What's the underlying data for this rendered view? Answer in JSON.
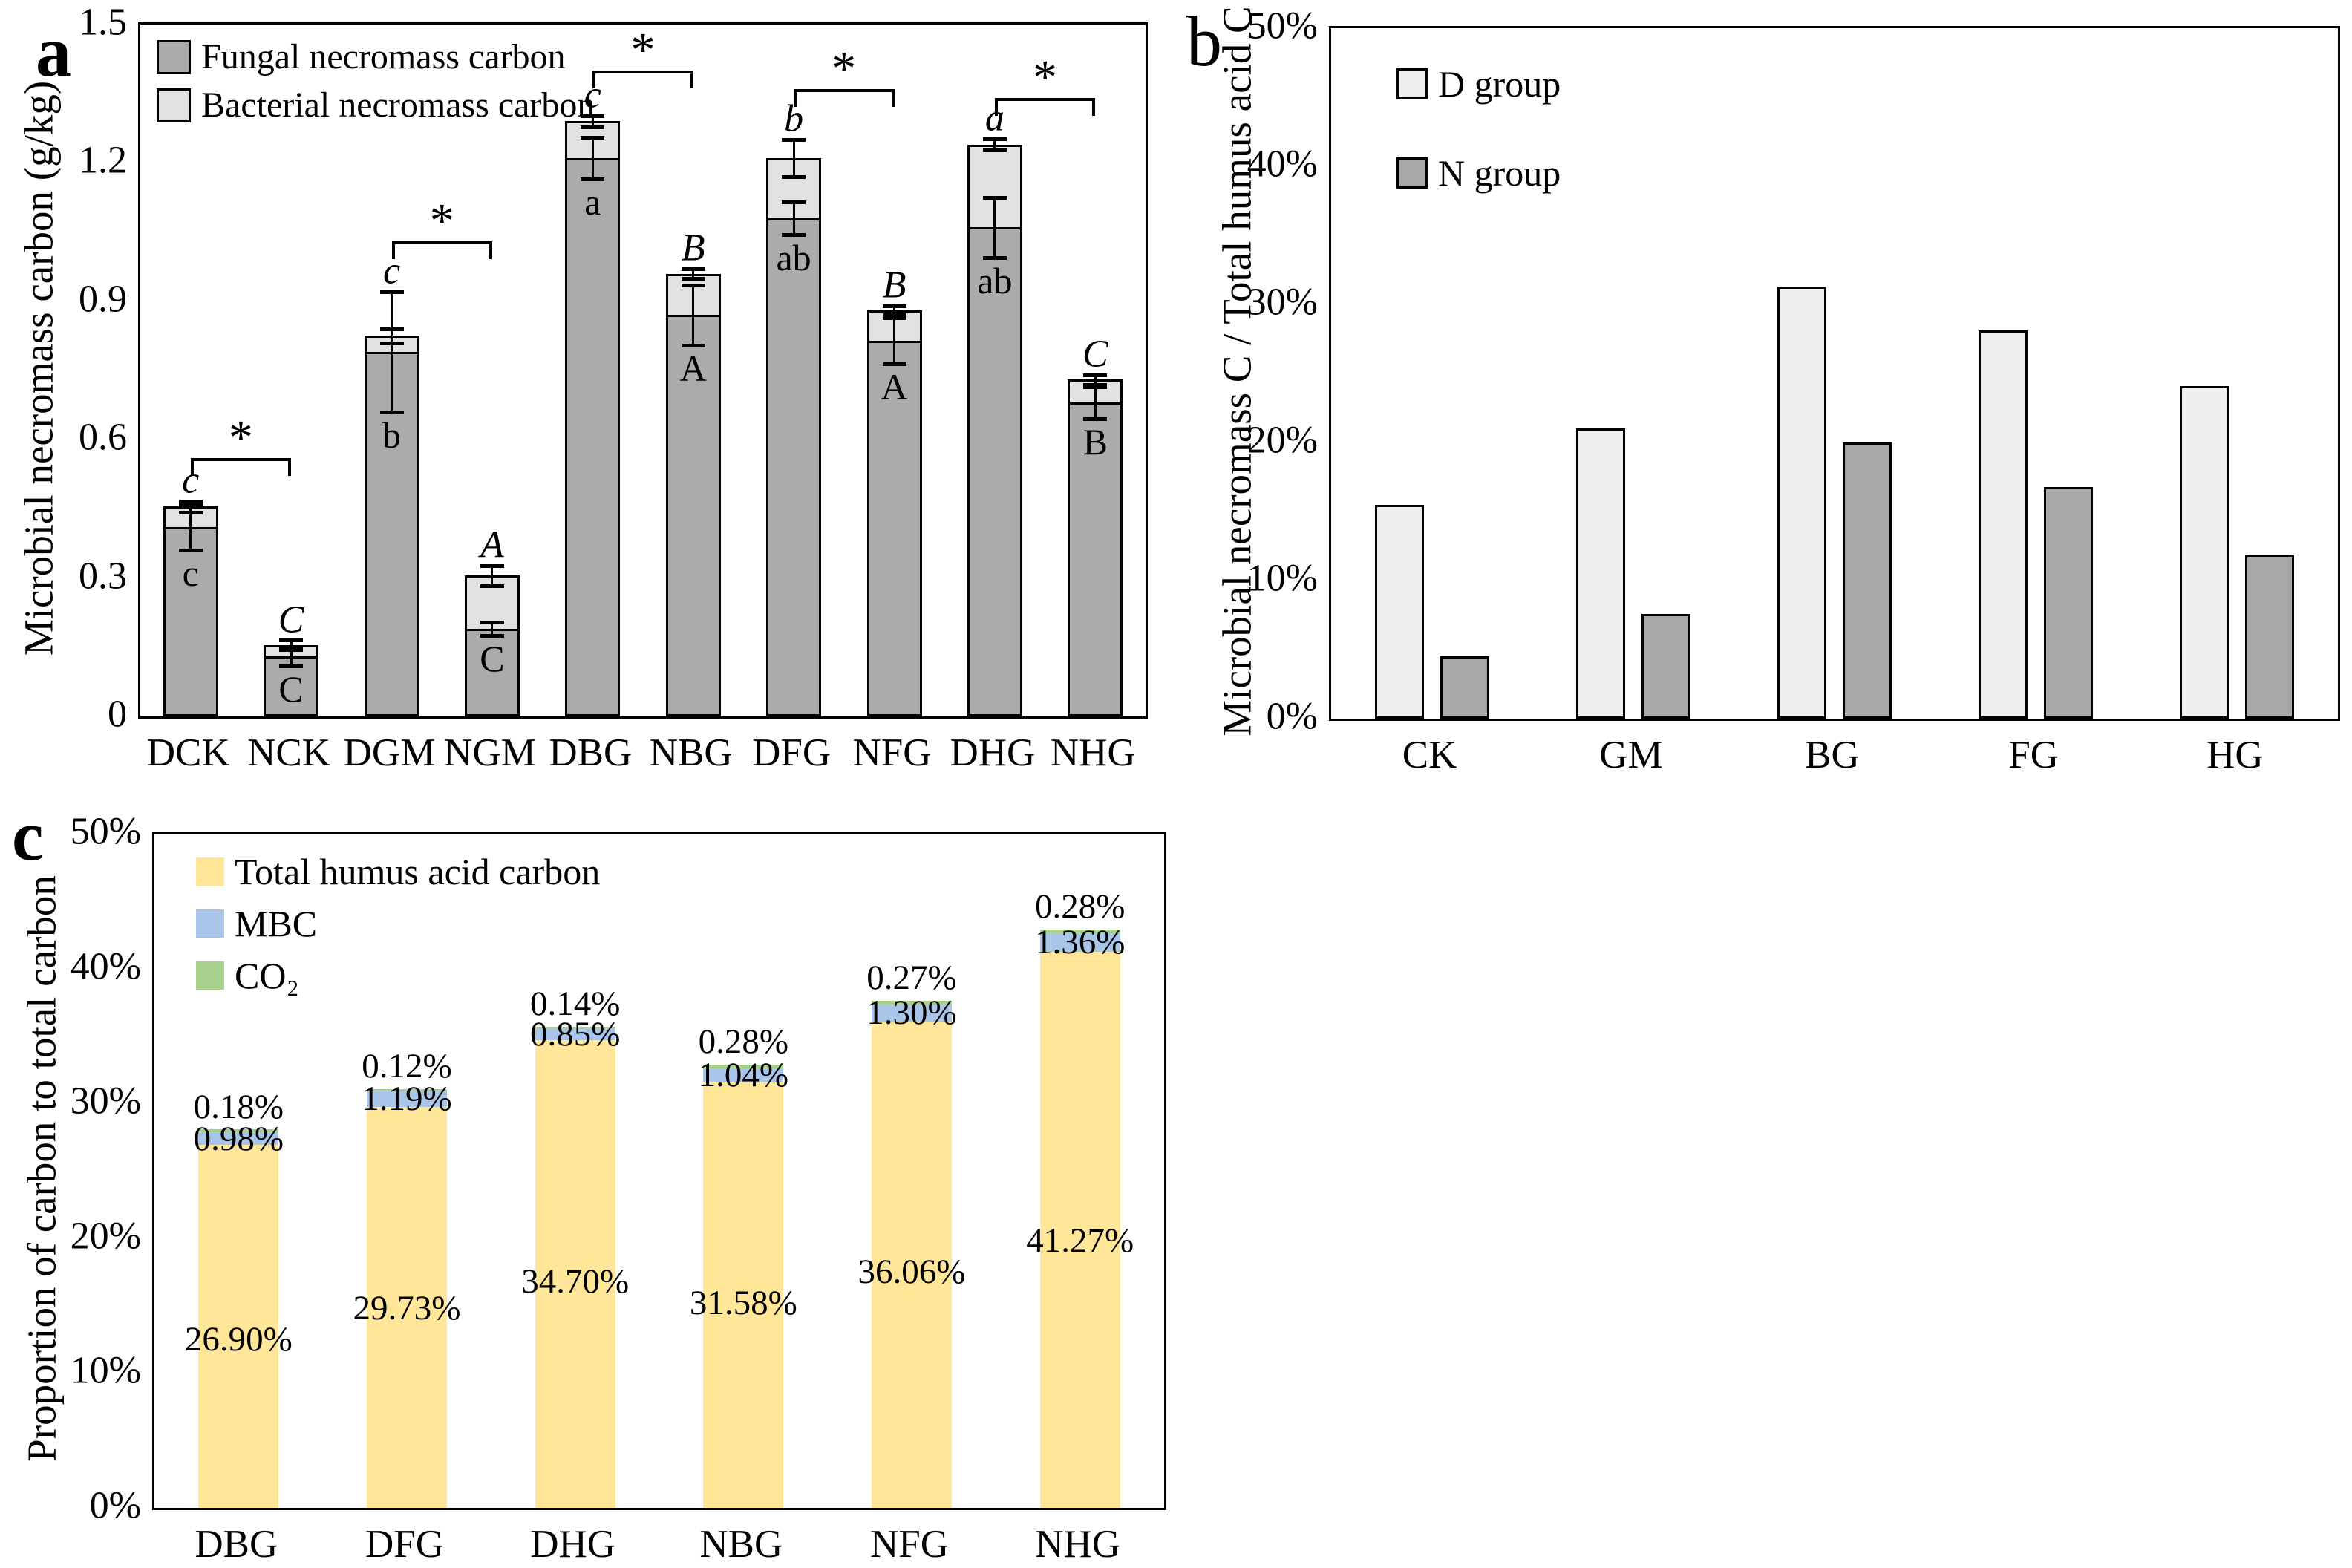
{
  "figure_background": "#ffffff",
  "chart_data": [
    {
      "id": "a",
      "panel_label": "a",
      "type": "bar",
      "stacked": true,
      "ylabel": "Microbial necromass carbon (g/kg)",
      "ylim": [
        0,
        1.5
      ],
      "yticks": [
        0,
        0.3,
        0.6,
        0.9,
        1.2,
        1.5
      ],
      "ytick_labels": [
        "0",
        "0.3",
        "0.6",
        "0.9",
        "1.2",
        "1.5"
      ],
      "grid": false,
      "legend_position": "top-left",
      "categories": [
        "DCK",
        "NCK",
        "DGM",
        "NGM",
        "DBG",
        "NBG",
        "DFG",
        "NFG",
        "DHG",
        "NHG"
      ],
      "series": [
        {
          "name": "Fungal necromass carbon",
          "color": "#ABABAB",
          "values": [
            0.41,
            0.13,
            0.79,
            0.19,
            1.21,
            0.87,
            1.08,
            0.815,
            1.06,
            0.68
          ],
          "errors": [
            0.05,
            0.02,
            0.13,
            0.015,
            0.045,
            0.065,
            0.035,
            0.05,
            0.065,
            0.035
          ]
        },
        {
          "name": "Bacterial necromass carbon",
          "color": "#E2E2E2",
          "values": [
            0.045,
            0.025,
            0.035,
            0.115,
            0.08,
            0.09,
            0.13,
            0.065,
            0.18,
            0.05
          ],
          "errors": [
            0.012,
            0.01,
            0.015,
            0.022,
            0.012,
            0.01,
            0.04,
            0.01,
            0.012,
            0.01
          ]
        }
      ],
      "letters_above_bars": [
        "c",
        "C",
        "c",
        "A",
        "c",
        "B",
        "b",
        "B",
        "a",
        "C"
      ],
      "letters_inside_bars": [
        "c",
        "C",
        "b",
        "C",
        "a",
        "A",
        "ab",
        "A",
        "ab",
        "B"
      ],
      "significance_brackets": [
        {
          "pair": [
            "DCK",
            "NCK"
          ],
          "y": 0.56,
          "label": "*"
        },
        {
          "pair": [
            "DGM",
            "NGM"
          ],
          "y": 1.03,
          "label": "*"
        },
        {
          "pair": [
            "DBG",
            "NBG"
          ],
          "y": 1.4,
          "label": "*"
        },
        {
          "pair": [
            "DFG",
            "NFG"
          ],
          "y": 1.36,
          "label": "*"
        },
        {
          "pair": [
            "DHG",
            "NHG"
          ],
          "y": 1.34,
          "label": "*"
        }
      ]
    },
    {
      "id": "b",
      "panel_label": "b",
      "type": "bar",
      "stacked": false,
      "ylabel": "Microbial necromass C / Total humus acid C",
      "ylim": [
        0,
        50
      ],
      "yticks": [
        0,
        10,
        20,
        30,
        40,
        50
      ],
      "ytick_labels": [
        "0%",
        "10%",
        "20%",
        "30%",
        "40%",
        "50%"
      ],
      "grid": false,
      "legend_position": "top-left",
      "categories": [
        "CK",
        "GM",
        "BG",
        "FG",
        "HG"
      ],
      "series": [
        {
          "name": "D group",
          "color": "#EFEFEF",
          "values": [
            15.5,
            21.0,
            31.3,
            28.1,
            24.1
          ]
        },
        {
          "name": "N group",
          "color": "#A8A8A8",
          "values": [
            4.5,
            7.6,
            20.0,
            16.8,
            11.9
          ]
        }
      ]
    },
    {
      "id": "c",
      "panel_label": "c",
      "type": "bar",
      "stacked": true,
      "ylabel": "Proportion of carbon to total carbon",
      "ylim": [
        0,
        50
      ],
      "yticks": [
        0,
        10,
        20,
        30,
        40,
        50
      ],
      "ytick_labels": [
        "0%",
        "10%",
        "20%",
        "30%",
        "40%",
        "50%"
      ],
      "grid": false,
      "legend_position": "top-left",
      "categories": [
        "DBG",
        "DFG",
        "DHG",
        "NBG",
        "NFG",
        "NHG"
      ],
      "series": [
        {
          "name": "Total humus acid carbon",
          "color": "#FFE699",
          "values": [
            26.9,
            29.73,
            34.7,
            31.58,
            36.06,
            41.27
          ]
        },
        {
          "name": "MBC",
          "color": "#A9C6EA",
          "values": [
            0.98,
            1.19,
            0.85,
            1.04,
            1.3,
            1.36
          ]
        },
        {
          "name": "CO₂",
          "color": "#A8D08D",
          "values": [
            0.18,
            0.12,
            0.14,
            0.28,
            0.27,
            0.28
          ]
        }
      ],
      "value_labels": {
        "humus": [
          "26.90%",
          "29.73%",
          "34.70%",
          "31.58%",
          "36.06%",
          "41.27%"
        ],
        "mbc": [
          "0.98%",
          "1.19%",
          "0.85%",
          "1.04%",
          "1.30%",
          "1.36%"
        ],
        "co2": [
          "0.18%",
          "0.12%",
          "0.14%",
          "0.28%",
          "0.27%",
          "0.28%"
        ],
        "humus_label_center_y": [
          12.5,
          14.8,
          16.8,
          15.2,
          17.5,
          19.8
        ]
      }
    }
  ]
}
